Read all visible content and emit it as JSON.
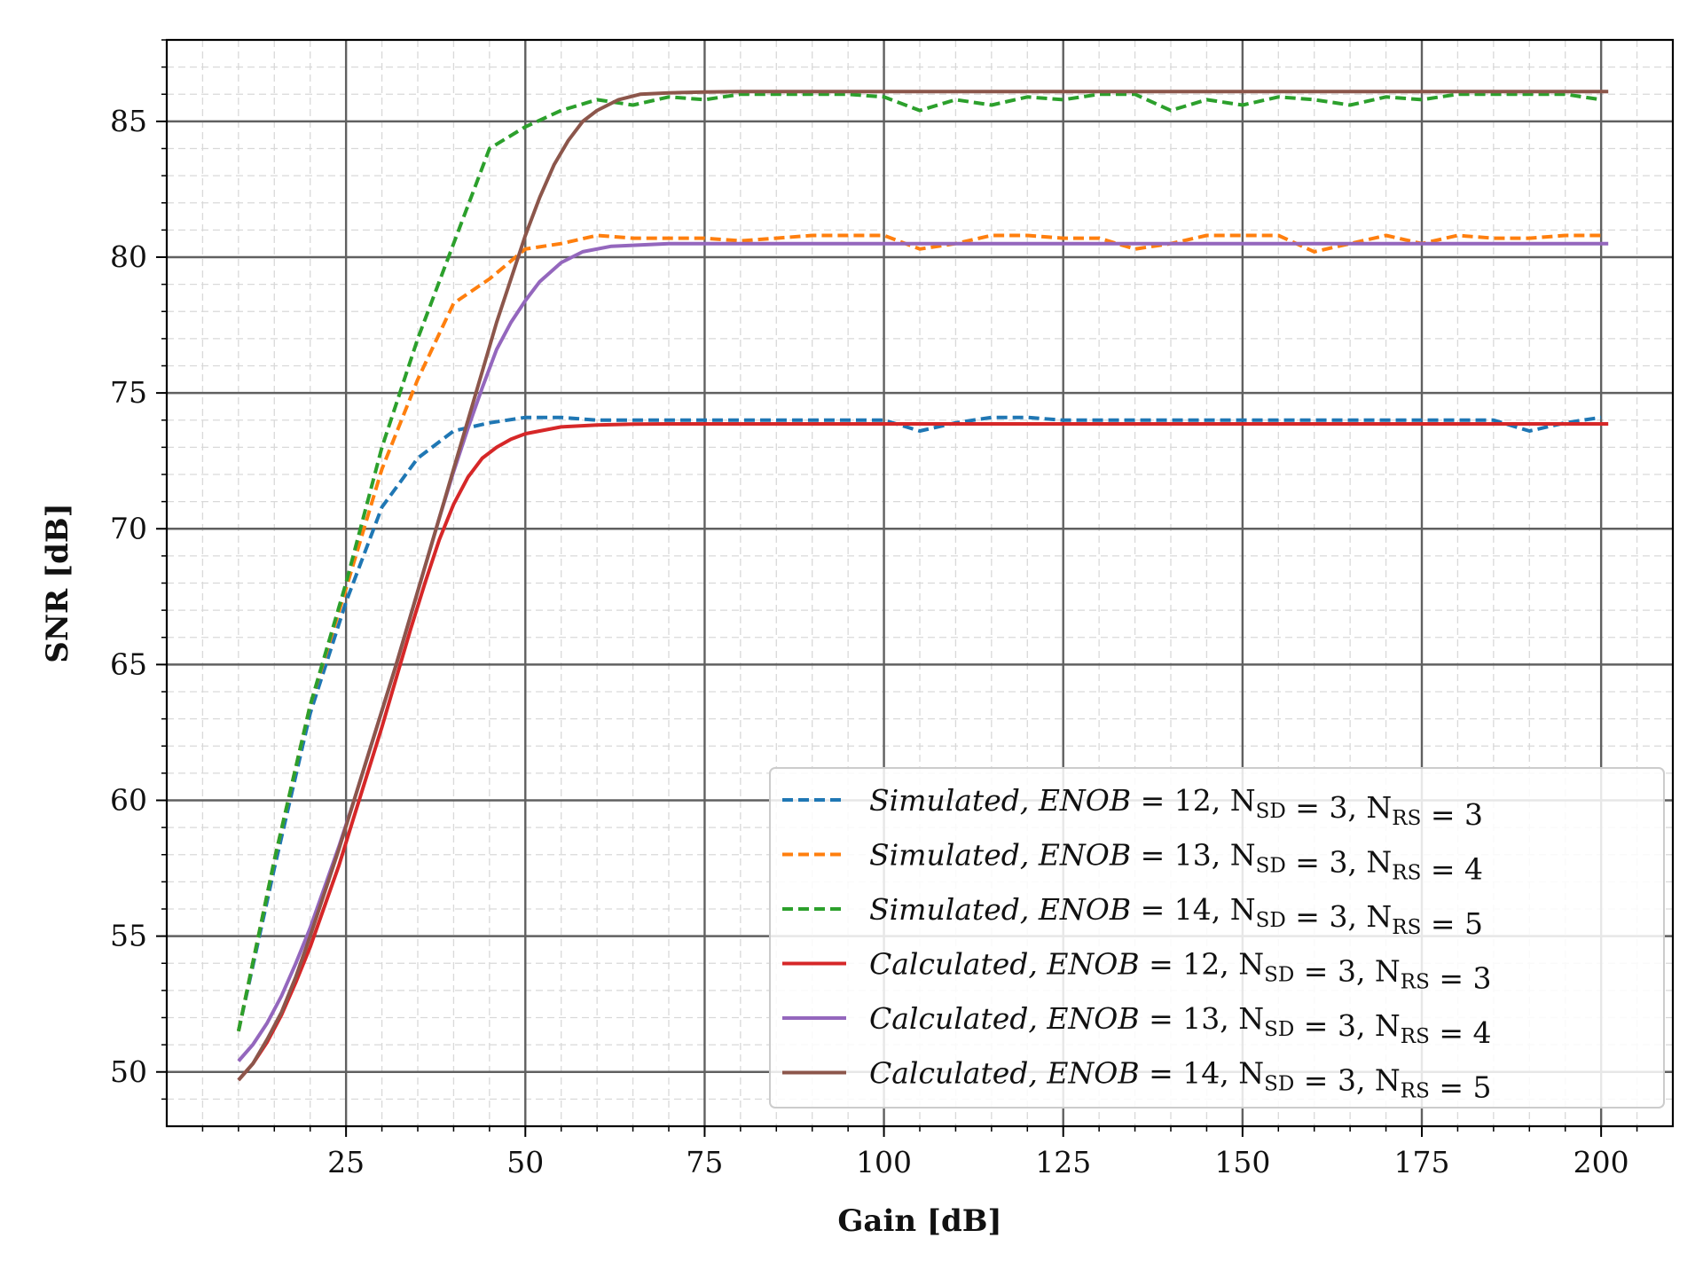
{
  "chart_data": {
    "type": "line",
    "title": "",
    "xlabel": "Gain [dB]",
    "ylabel": "SNR [dB]",
    "xlim": [
      0,
      210
    ],
    "ylim": [
      48,
      88
    ],
    "xticks": [
      25,
      50,
      75,
      100,
      125,
      150,
      175,
      200
    ],
    "yticks": [
      50,
      55,
      60,
      65,
      70,
      75,
      80,
      85
    ],
    "grid": true,
    "minor_grid": true,
    "legend_position": "lower-right",
    "series": [
      {
        "name": "Simulated, ENOB = 12, N_SD = 3, N_RS = 3",
        "legend": {
          "prefix": "Simulated",
          "enob": "12",
          "nsd": "3",
          "nrs": "3"
        },
        "color": "#1f77b4",
        "dash": true,
        "x": [
          10,
          15,
          20,
          25,
          30,
          35,
          40,
          45,
          50,
          55,
          60,
          65,
          70,
          75,
          80,
          85,
          90,
          95,
          100,
          105,
          110,
          115,
          120,
          125,
          130,
          135,
          140,
          145,
          150,
          155,
          160,
          165,
          170,
          175,
          180,
          185,
          190,
          195,
          200
        ],
        "y": [
          51.5,
          57.5,
          63.2,
          67.3,
          70.8,
          72.6,
          73.6,
          73.9,
          74.1,
          74.1,
          74.0,
          74.0,
          74.0,
          74.0,
          74.0,
          74.0,
          74.0,
          74.0,
          74.0,
          73.6,
          73.9,
          74.1,
          74.1,
          74.0,
          74.0,
          74.0,
          74.0,
          74.0,
          74.0,
          74.0,
          74.0,
          74.0,
          74.0,
          74.0,
          74.0,
          74.0,
          73.6,
          73.9,
          74.1
        ]
      },
      {
        "name": "Simulated, ENOB = 13, N_SD = 3, N_RS = 4",
        "legend": {
          "prefix": "Simulated",
          "enob": "13",
          "nsd": "3",
          "nrs": "4"
        },
        "color": "#ff7f0e",
        "dash": true,
        "x": [
          10,
          15,
          20,
          25,
          30,
          35,
          40,
          45,
          50,
          55,
          60,
          65,
          70,
          75,
          80,
          85,
          90,
          95,
          100,
          105,
          110,
          115,
          120,
          125,
          130,
          135,
          140,
          145,
          150,
          155,
          160,
          165,
          170,
          175,
          180,
          185,
          190,
          195,
          200
        ],
        "y": [
          51.5,
          57.8,
          63.5,
          67.8,
          72.2,
          75.5,
          78.3,
          79.2,
          80.3,
          80.5,
          80.8,
          80.7,
          80.7,
          80.7,
          80.6,
          80.7,
          80.8,
          80.8,
          80.8,
          80.3,
          80.5,
          80.8,
          80.8,
          80.7,
          80.7,
          80.3,
          80.5,
          80.8,
          80.8,
          80.8,
          80.2,
          80.5,
          80.8,
          80.5,
          80.8,
          80.7,
          80.7,
          80.8,
          80.8
        ]
      },
      {
        "name": "Simulated, ENOB = 14, N_SD = 3, N_RS = 5",
        "legend": {
          "prefix": "Simulated",
          "enob": "14",
          "nsd": "3",
          "nrs": "5"
        },
        "color": "#2ca02c",
        "dash": true,
        "x": [
          10,
          15,
          20,
          25,
          30,
          35,
          40,
          45,
          50,
          55,
          60,
          65,
          70,
          75,
          80,
          85,
          90,
          95,
          100,
          105,
          110,
          115,
          120,
          125,
          130,
          135,
          140,
          145,
          150,
          155,
          160,
          165,
          170,
          175,
          180,
          185,
          190,
          195,
          200
        ],
        "y": [
          51.5,
          57.8,
          63.5,
          68.0,
          73.0,
          77.0,
          80.5,
          84.0,
          84.8,
          85.4,
          85.8,
          85.6,
          85.9,
          85.8,
          86.0,
          86.0,
          86.0,
          86.0,
          85.9,
          85.4,
          85.8,
          85.6,
          85.9,
          85.8,
          86.0,
          86.0,
          85.4,
          85.8,
          85.6,
          85.9,
          85.8,
          85.6,
          85.9,
          85.8,
          86.0,
          86.0,
          86.0,
          86.0,
          85.8
        ]
      },
      {
        "name": "Calculated, ENOB = 12, N_SD = 3, N_RS = 3",
        "legend": {
          "prefix": "Calculated",
          "enob": "12",
          "nsd": "3",
          "nrs": "3"
        },
        "color": "#d62728",
        "dash": false,
        "x": [
          10,
          12,
          14,
          16,
          18,
          20,
          22,
          24,
          26,
          28,
          30,
          32,
          34,
          36,
          38,
          40,
          42,
          44,
          46,
          48,
          50,
          52,
          55,
          60,
          65,
          70,
          80,
          100,
          150,
          201
        ],
        "y": [
          49.7,
          50.3,
          51.1,
          52.1,
          53.3,
          54.6,
          56.1,
          57.6,
          59.3,
          61.0,
          62.7,
          64.5,
          66.3,
          68.0,
          69.6,
          70.9,
          71.9,
          72.6,
          73.0,
          73.3,
          73.5,
          73.6,
          73.75,
          73.82,
          73.85,
          73.86,
          73.86,
          73.86,
          73.86,
          73.86
        ]
      },
      {
        "name": "Calculated, ENOB = 13, N_SD = 3, N_RS = 4",
        "legend": {
          "prefix": "Calculated",
          "enob": "13",
          "nsd": "3",
          "nrs": "4"
        },
        "color": "#9467bd",
        "dash": false,
        "x": [
          10,
          12,
          14,
          16,
          18,
          20,
          22,
          24,
          26,
          28,
          30,
          32,
          34,
          36,
          38,
          40,
          42,
          44,
          46,
          48,
          50,
          52,
          55,
          58,
          62,
          66,
          70,
          80,
          100,
          150,
          201
        ],
        "y": [
          50.4,
          51.0,
          51.8,
          52.8,
          54.0,
          55.3,
          56.8,
          58.3,
          59.9,
          61.6,
          63.3,
          65.0,
          66.8,
          68.6,
          70.4,
          72.1,
          73.7,
          75.2,
          76.6,
          77.6,
          78.4,
          79.1,
          79.8,
          80.2,
          80.4,
          80.45,
          80.5,
          80.5,
          80.5,
          80.5,
          80.5
        ]
      },
      {
        "name": "Calculated, ENOB = 14, N_SD = 3, N_RS = 5",
        "legend": {
          "prefix": "Calculated",
          "enob": "14",
          "nsd": "3",
          "nrs": "5"
        },
        "color": "#8c564b",
        "dash": false,
        "x": [
          10,
          12,
          14,
          16,
          18,
          20,
          22,
          24,
          26,
          28,
          30,
          32,
          34,
          36,
          38,
          40,
          42,
          44,
          46,
          48,
          50,
          52,
          54,
          56,
          58,
          60,
          63,
          66,
          70,
          75,
          80,
          100,
          150,
          201
        ],
        "y": [
          49.7,
          50.3,
          51.2,
          52.2,
          53.5,
          55.0,
          56.6,
          58.2,
          59.9,
          61.6,
          63.3,
          65.0,
          66.8,
          68.6,
          70.4,
          72.2,
          74.0,
          75.8,
          77.6,
          79.2,
          80.8,
          82.2,
          83.4,
          84.3,
          85.0,
          85.4,
          85.8,
          86.0,
          86.05,
          86.08,
          86.1,
          86.1,
          86.1,
          86.1
        ]
      }
    ]
  }
}
